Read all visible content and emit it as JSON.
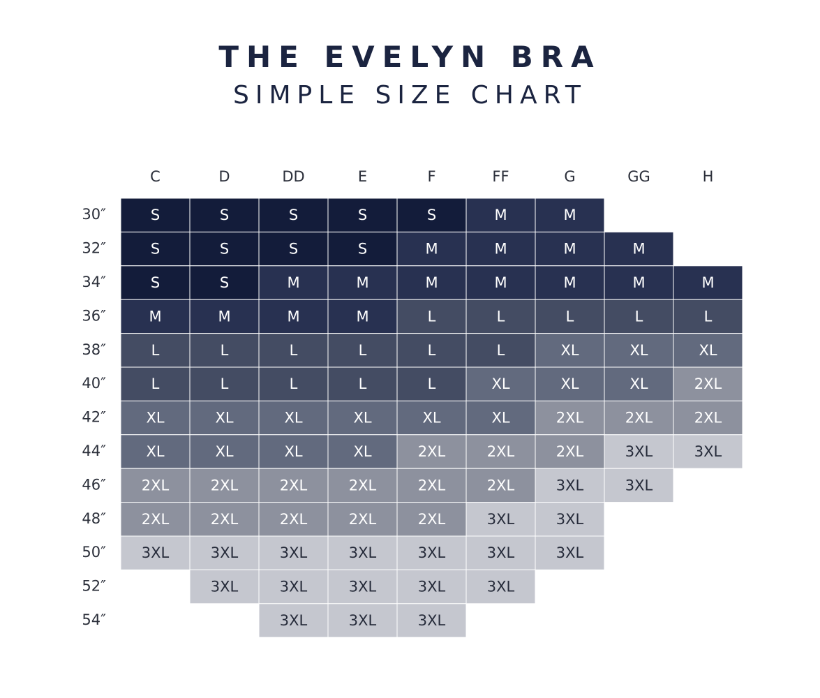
{
  "title": "THE EVELYN BRA",
  "subtitle": "SIMPLE SIZE CHART",
  "colors": {
    "S": "#131c3a",
    "M": "#283151",
    "L": "#444c63",
    "XL": "#626a7e",
    "2XL": "#8d919e",
    "3XL": "#c5c7cf",
    "label_text": "#2b2f3a"
  },
  "chart_data": {
    "type": "table",
    "title": "THE EVELYN BRA",
    "subtitle": "SIMPLE SIZE CHART",
    "columns": [
      "C",
      "D",
      "DD",
      "E",
      "F",
      "FF",
      "G",
      "GG",
      "H"
    ],
    "rows": [
      "30″",
      "32″",
      "34″",
      "36″",
      "38″",
      "40″",
      "42″",
      "44″",
      "46″",
      "48″",
      "50″",
      "52″",
      "54″"
    ],
    "cells": [
      [
        "S",
        "S",
        "S",
        "S",
        "S",
        "M",
        "M",
        "",
        ""
      ],
      [
        "S",
        "S",
        "S",
        "S",
        "M",
        "M",
        "M",
        "M",
        ""
      ],
      [
        "S",
        "S",
        "M",
        "M",
        "M",
        "M",
        "M",
        "M",
        "M"
      ],
      [
        "M",
        "M",
        "M",
        "M",
        "L",
        "L",
        "L",
        "L",
        "L"
      ],
      [
        "L",
        "L",
        "L",
        "L",
        "L",
        "L",
        "XL",
        "XL",
        "XL"
      ],
      [
        "L",
        "L",
        "L",
        "L",
        "L",
        "XL",
        "XL",
        "XL",
        "2XL"
      ],
      [
        "XL",
        "XL",
        "XL",
        "XL",
        "XL",
        "XL",
        "2XL",
        "2XL",
        "2XL"
      ],
      [
        "XL",
        "XL",
        "XL",
        "XL",
        "2XL",
        "2XL",
        "2XL",
        "3XL",
        "3XL"
      ],
      [
        "2XL",
        "2XL",
        "2XL",
        "2XL",
        "2XL",
        "2XL",
        "3XL",
        "3XL",
        ""
      ],
      [
        "2XL",
        "2XL",
        "2XL",
        "2XL",
        "2XL",
        "3XL",
        "3XL",
        "",
        ""
      ],
      [
        "3XL",
        "3XL",
        "3XL",
        "3XL",
        "3XL",
        "3XL",
        "3XL",
        "",
        ""
      ],
      [
        "",
        "3XL",
        "3XL",
        "3XL",
        "3XL",
        "3XL",
        "",
        "",
        ""
      ],
      [
        "",
        "",
        "3XL",
        "3XL",
        "3XL",
        "",
        "",
        "",
        ""
      ]
    ]
  }
}
